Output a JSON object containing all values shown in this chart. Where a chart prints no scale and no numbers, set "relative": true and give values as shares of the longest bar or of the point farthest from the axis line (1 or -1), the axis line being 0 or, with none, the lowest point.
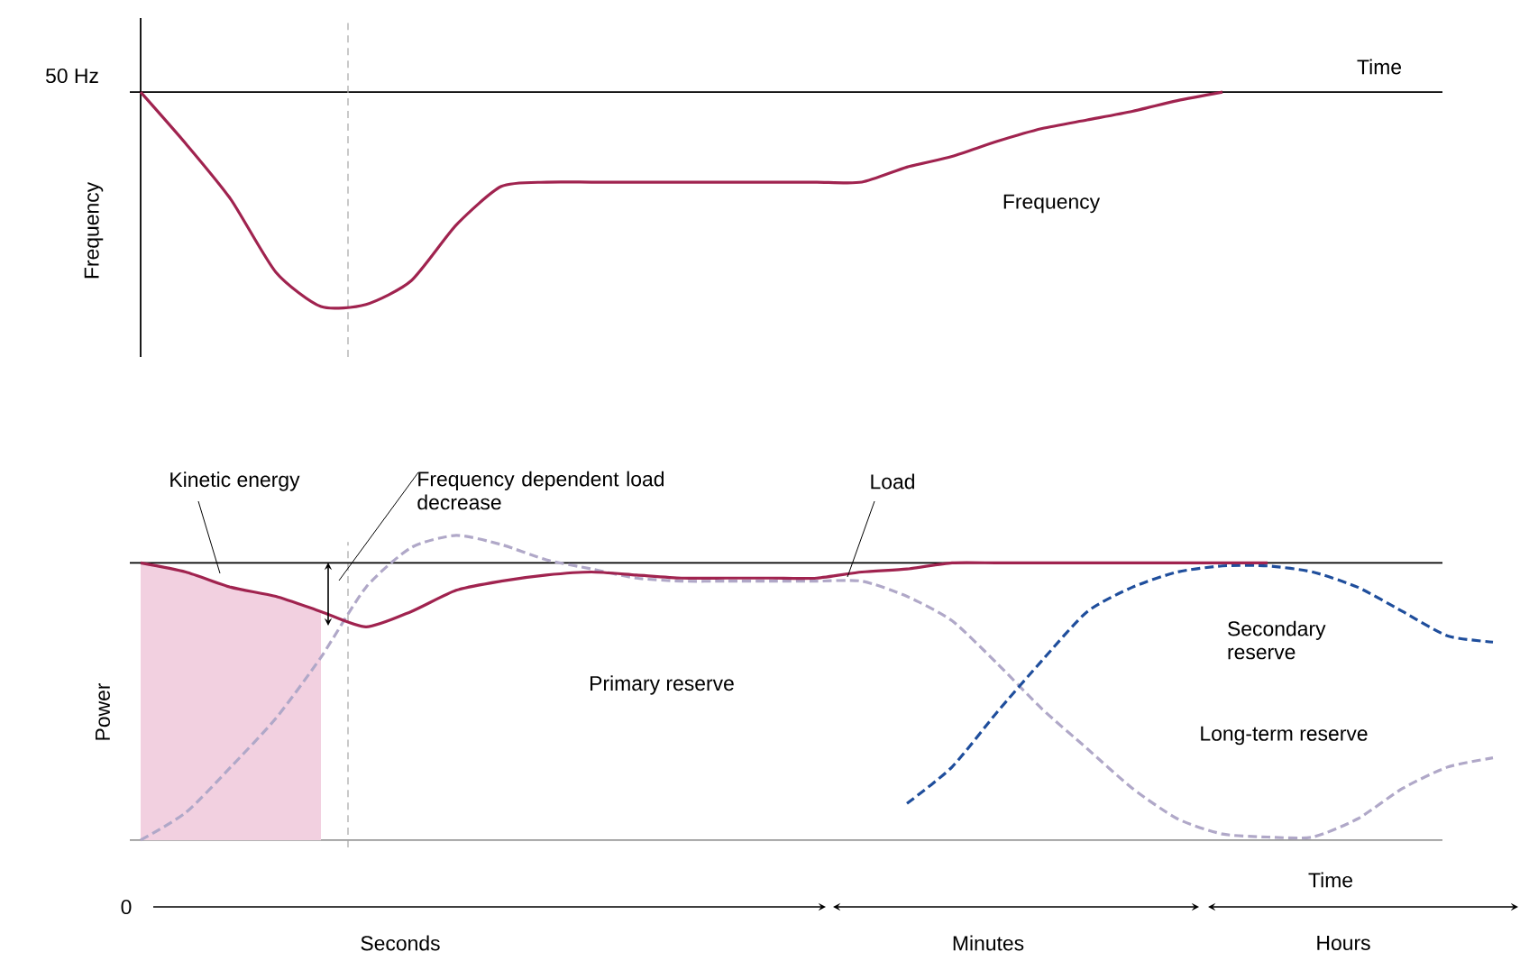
{
  "chart_data": [
    {
      "type": "line",
      "relative": true,
      "ylabel": "Frequency",
      "categories": [
        null,
        null,
        null,
        null,
        null,
        null,
        null,
        null,
        null,
        null,
        null,
        null,
        null,
        null,
        null,
        null,
        null,
        null,
        null,
        null,
        null,
        null,
        null,
        null,
        null,
        null,
        null,
        null,
        null,
        null
      ],
      "series": [
        {
          "color": "#a0234f",
          "line_style": "solid",
          "values": [
            0,
            -0.24,
            -0.5,
            -0.84,
            -1,
            -0.99,
            -0.88,
            -0.62,
            -0.44,
            -0.42,
            -0.42,
            -0.42,
            -0.42,
            -0.42,
            -0.42,
            -0.42,
            -0.42,
            -0.35,
            -0.3,
            -0.23,
            -0.17,
            -0.13,
            -0.09,
            -0.04,
            0,
            null,
            null,
            null,
            null,
            null
          ]
        }
      ],
      "annotations": [
        "50 Hz",
        "Time",
        "Frequency"
      ]
    },
    {
      "type": "line",
      "relative": true,
      "ylabel": "Power",
      "categories": [
        null,
        null,
        null,
        null,
        null,
        null,
        null,
        null,
        null,
        null,
        null,
        null,
        null,
        null,
        null,
        null,
        null,
        null,
        null,
        null,
        null,
        null,
        null,
        null,
        null,
        null,
        null,
        null,
        null,
        null,
        null
      ],
      "series": [
        {
          "type": "area",
          "color": "#f2d0e0",
          "values": [
            0.91,
            0.88,
            0.83,
            0.8,
            0.75,
            null,
            null,
            null,
            null,
            null,
            null,
            null,
            null,
            null,
            null,
            null,
            null,
            null,
            null,
            null,
            null,
            null,
            null,
            null,
            null,
            null,
            null,
            null,
            null,
            null,
            null
          ]
        },
        {
          "color": "#b0a8c8",
          "line_style": "dashed",
          "values": [
            0,
            0.09,
            0.24,
            0.4,
            0.6,
            0.83,
            0.96,
            1.0,
            0.97,
            0.92,
            0.89,
            0.86,
            0.85,
            0.85,
            0.85,
            0.85,
            0.85,
            0.8,
            0.72,
            0.58,
            0.43,
            0.3,
            0.17,
            0.07,
            0.02,
            0.01,
            0.01,
            0.07,
            0.17,
            0.24,
            0.27
          ]
        },
        {
          "color": "#1f4e9c",
          "line_style": "dashed",
          "values": [
            null,
            null,
            null,
            null,
            null,
            null,
            null,
            null,
            null,
            null,
            null,
            null,
            null,
            null,
            null,
            null,
            null,
            0.12,
            0.24,
            0.42,
            0.59,
            0.75,
            0.83,
            0.88,
            0.9,
            0.9,
            0.88,
            0.83,
            0.75,
            0.67,
            0.65
          ]
        },
        {
          "color": "#a0234f",
          "line_style": "solid",
          "values": [
            0.91,
            0.88,
            0.83,
            0.8,
            0.75,
            0.7,
            0.75,
            0.82,
            0.85,
            0.87,
            0.88,
            0.87,
            0.86,
            0.86,
            0.86,
            0.86,
            0.88,
            0.89,
            0.91,
            0.91,
            0.91,
            0.91,
            0.91,
            0.91,
            0.91,
            0.91,
            null,
            null,
            null,
            null,
            null
          ]
        }
      ],
      "ref_lines": [
        {
          "axis": "y",
          "value": 0.91,
          "color": "#000000",
          "line_style": "solid"
        }
      ],
      "annotations": [
        "Kinetic energy",
        "Frequency dependent load decrease",
        "Load",
        "Primary reserve",
        "Secondary reserve",
        "Long-term reserve",
        "Time",
        "0",
        "Seconds",
        "Minutes",
        "Hours"
      ]
    }
  ]
}
